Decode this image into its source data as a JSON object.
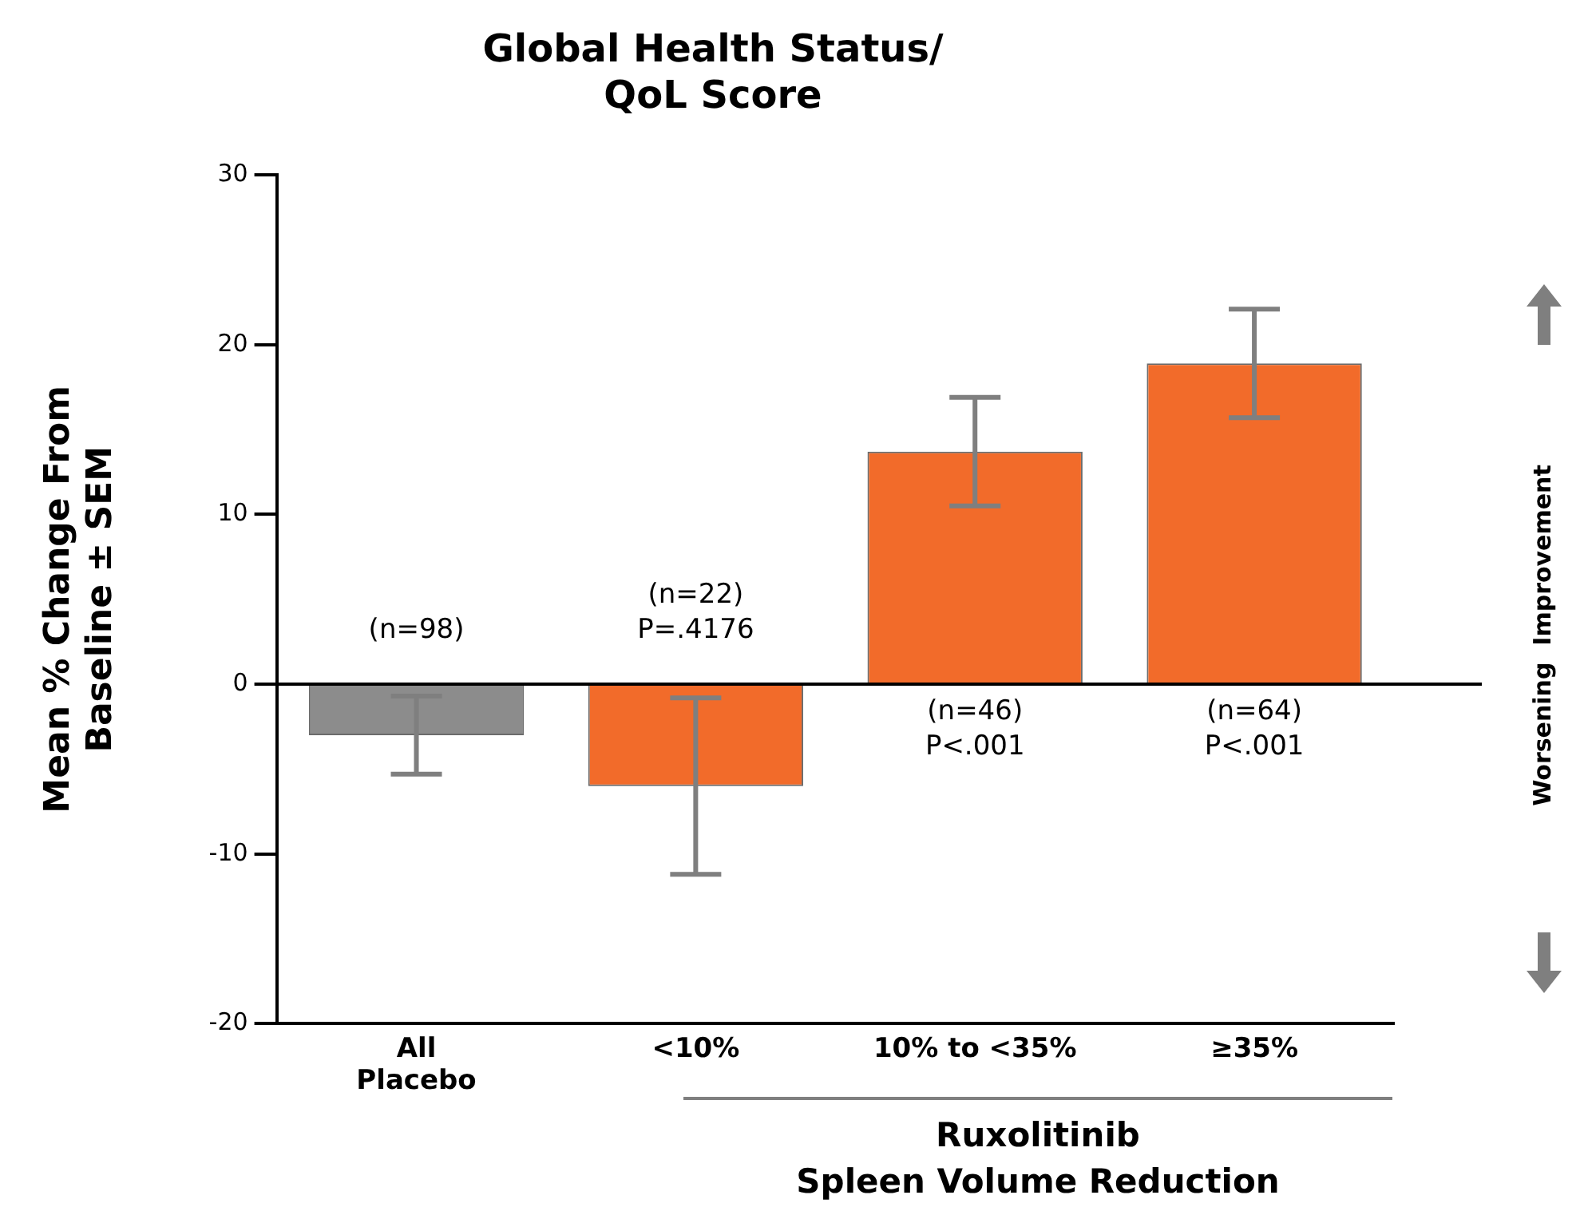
{
  "chart_data": {
    "type": "bar",
    "title": "Global Health Status/\nQoL Score",
    "ylabel": "Mean % Change From\nBaseline ± SEM",
    "categories": [
      "All\nPlacebo",
      "<10%",
      "10% to <35%",
      "≥35%"
    ],
    "values": [
      -3,
      -6,
      13.7,
      18.9
    ],
    "colors": [
      "#8c8c8c",
      "#f26b2a",
      "#f26b2a",
      "#f26b2a"
    ],
    "errors": [
      2.3,
      5.2,
      3.2,
      3.2
    ],
    "ylim": [
      -20,
      30
    ],
    "yticks": [
      -20,
      -10,
      0,
      10,
      20,
      30
    ],
    "grid": false,
    "legend": false,
    "ref_lines": [
      {
        "axis": "y",
        "value": 0,
        "color": "#000000"
      }
    ],
    "annotations": [
      "(n=98)",
      "(n=22)\nP=.4176",
      "(n=46)\nP<.001",
      "(n=64)\nP<.001",
      "Worsening",
      "Improvement",
      "Ruxolitinib\nSpleen Volume Reduction"
    ]
  }
}
